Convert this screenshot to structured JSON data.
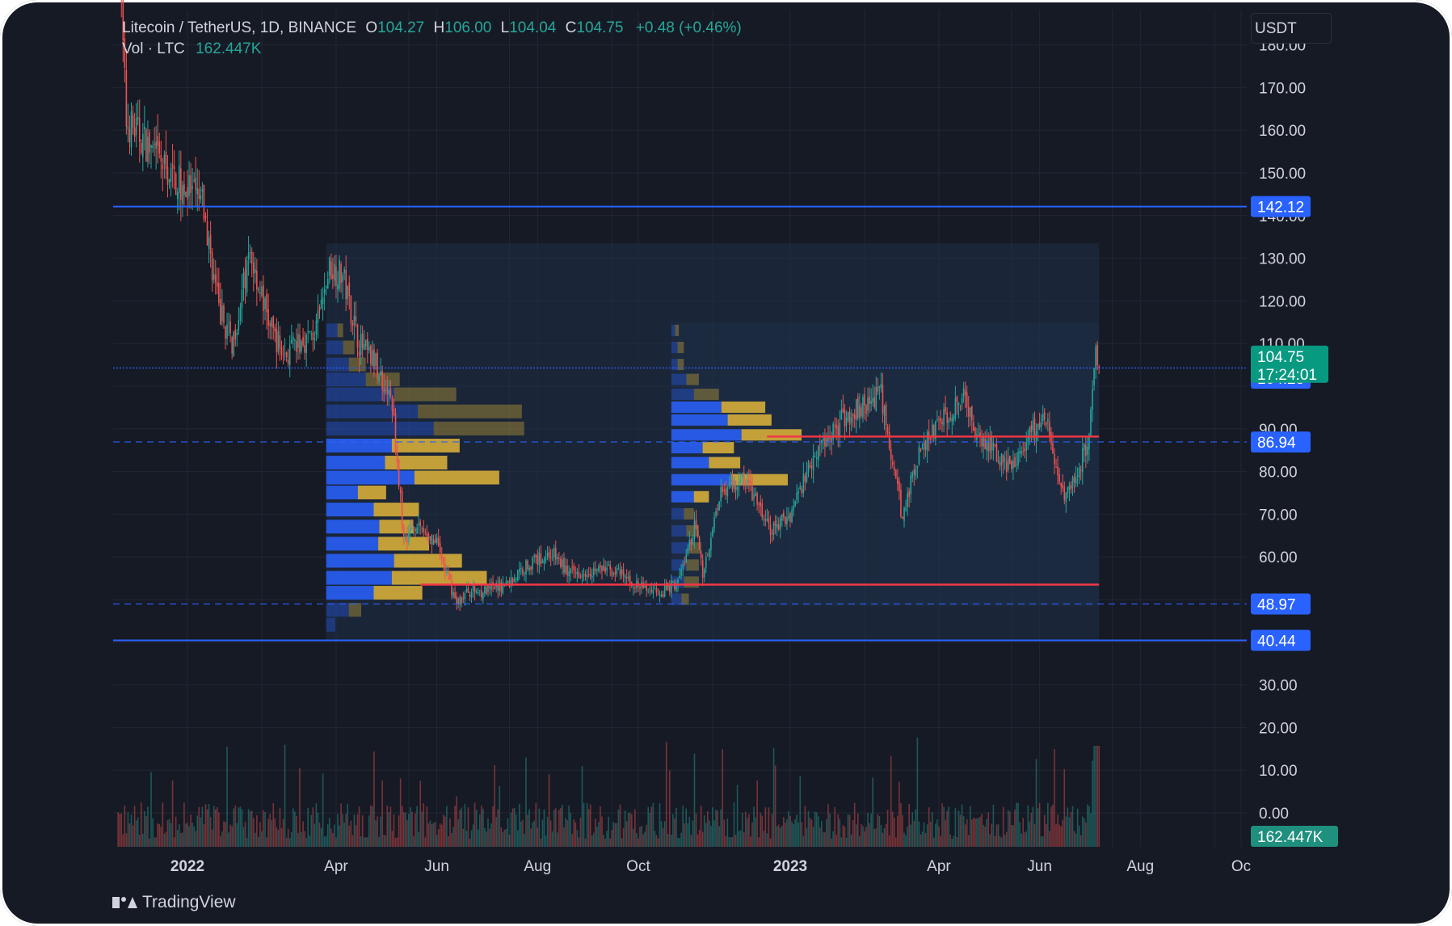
{
  "header": {
    "symbol": "Litecoin / TetherUS, 1D, BINANCE",
    "open_label": "O",
    "open": "104.27",
    "high_label": "H",
    "high": "106.00",
    "low_label": "L",
    "low": "104.04",
    "close_label": "C",
    "close": "104.75",
    "change": "+0.48 (+0.46%)",
    "volume_label": "Vol · LTC",
    "volume": "162.447K"
  },
  "currency_selector": "USDT",
  "brand": "TradingView",
  "colors": {
    "background": "#161a25",
    "grid": "#232733",
    "up": "#26a69a",
    "down": "#ef5350",
    "level_line": "#2962ff",
    "poc_line": "#f23645",
    "profile_up": "#2962ff",
    "profile_down": "#e0b53a",
    "axis_text": "#d1d4dc"
  },
  "chart_data": {
    "type": "candlestick",
    "title": "Litecoin / TetherUS, 1D, BINANCE",
    "y_axis": {
      "ylim": [
        -5,
        180
      ],
      "ticks": [
        "0.00",
        "10.00",
        "20.00",
        "30.00",
        "40.00",
        "50.00",
        "60.00",
        "70.00",
        "80.00",
        "90.00",
        "110.00",
        "120.00",
        "130.00",
        "140.00",
        "150.00",
        "160.00",
        "170.00",
        "180.00"
      ]
    },
    "x_axis": {
      "xlim": [
        "2021-11-15",
        "2023-10-15"
      ],
      "ticks": [
        {
          "label": "2022",
          "date": "2022-01-01",
          "bold": true
        },
        {
          "label": "Apr",
          "date": "2022-04-01"
        },
        {
          "label": "Jun",
          "date": "2022-06-01"
        },
        {
          "label": "Aug",
          "date": "2022-08-01"
        },
        {
          "label": "Oct",
          "date": "2022-10-01"
        },
        {
          "label": "2023",
          "date": "2023-01-01",
          "bold": true
        },
        {
          "label": "Apr",
          "date": "2023-04-01"
        },
        {
          "label": "Jun",
          "date": "2023-06-01"
        },
        {
          "label": "Aug",
          "date": "2023-08-01"
        },
        {
          "label": "Oc",
          "date": "2023-10-01"
        }
      ]
    },
    "grid": true,
    "price_path": [
      [
        "2021-11-20",
        205
      ],
      [
        "2021-11-25",
        162
      ],
      [
        "2021-12-05",
        158
      ],
      [
        "2021-12-20",
        150
      ],
      [
        "2022-01-01",
        146
      ],
      [
        "2022-01-10",
        143
      ],
      [
        "2022-01-20",
        118
      ],
      [
        "2022-01-28",
        110
      ],
      [
        "2022-02-08",
        131
      ],
      [
        "2022-02-20",
        114
      ],
      [
        "2022-03-01",
        107
      ],
      [
        "2022-03-10",
        110
      ],
      [
        "2022-03-20",
        113
      ],
      [
        "2022-03-28",
        128
      ],
      [
        "2022-04-05",
        126
      ],
      [
        "2022-04-15",
        110
      ],
      [
        "2022-04-25",
        105
      ],
      [
        "2022-05-05",
        96
      ],
      [
        "2022-05-12",
        64
      ],
      [
        "2022-05-20",
        68
      ],
      [
        "2022-06-01",
        63
      ],
      [
        "2022-06-13",
        49
      ],
      [
        "2022-06-20",
        52
      ],
      [
        "2022-07-01",
        52
      ],
      [
        "2022-07-15",
        54
      ],
      [
        "2022-07-25",
        58
      ],
      [
        "2022-08-10",
        61
      ],
      [
        "2022-08-20",
        56
      ],
      [
        "2022-09-01",
        57
      ],
      [
        "2022-09-15",
        57
      ],
      [
        "2022-10-01",
        53
      ],
      [
        "2022-10-15",
        52
      ],
      [
        "2022-10-25",
        54
      ],
      [
        "2022-11-05",
        68
      ],
      [
        "2022-11-09",
        56
      ],
      [
        "2022-11-20",
        76
      ],
      [
        "2022-12-05",
        78
      ],
      [
        "2022-12-20",
        66
      ],
      [
        "2023-01-01",
        70
      ],
      [
        "2023-01-15",
        84
      ],
      [
        "2023-02-01",
        92
      ],
      [
        "2023-02-15",
        96
      ],
      [
        "2023-02-25",
        98
      ],
      [
        "2023-03-10",
        69
      ],
      [
        "2023-03-20",
        85
      ],
      [
        "2023-04-01",
        91
      ],
      [
        "2023-04-15",
        98
      ],
      [
        "2023-04-25",
        88
      ],
      [
        "2023-05-05",
        85
      ],
      [
        "2023-05-15",
        80
      ],
      [
        "2023-05-25",
        89
      ],
      [
        "2023-06-05",
        92
      ],
      [
        "2023-06-15",
        74
      ],
      [
        "2023-06-25",
        81
      ],
      [
        "2023-07-01",
        88
      ],
      [
        "2023-07-05",
        109
      ],
      [
        "2023-07-07",
        104.75
      ]
    ],
    "horizontal_levels": [
      {
        "price": 142.12,
        "label": "142.12",
        "style": "solid"
      },
      {
        "price": 104.28,
        "label": "104.28",
        "style": "dotted"
      },
      {
        "price": 86.94,
        "label": "86.94",
        "style": "dashed"
      },
      {
        "price": 48.97,
        "label": "48.97",
        "style": "dashed"
      },
      {
        "price": 40.44,
        "label": "40.44",
        "style": "solid"
      }
    ],
    "last_price": {
      "price": 104.75,
      "label": "104.75",
      "countdown": "17:24:01"
    },
    "volume_badge": "162.447K",
    "volume_profiles": [
      {
        "start": "2022-03-26",
        "end": "2023-07-07",
        "price_range": [
          40.44,
          133.5
        ],
        "poc": 53.5,
        "rows": [
          [
            44,
            8,
            0
          ],
          [
            47.5,
            20,
            11
          ],
          [
            51.5,
            42,
            43
          ],
          [
            55,
            58,
            84
          ],
          [
            59,
            60,
            60
          ],
          [
            63,
            46,
            45
          ],
          [
            67,
            47,
            30
          ],
          [
            71,
            42,
            40
          ],
          [
            75,
            28,
            25
          ],
          [
            78.5,
            78,
            75
          ],
          [
            82,
            52,
            55
          ],
          [
            86,
            58,
            60
          ],
          [
            90,
            95,
            80
          ],
          [
            94,
            81,
            92
          ],
          [
            98,
            60,
            55
          ],
          [
            101.5,
            35,
            30
          ],
          [
            105,
            20,
            15
          ],
          [
            109,
            15,
            10
          ],
          [
            113,
            10,
            5
          ]
        ]
      },
      {
        "start": "2022-10-21",
        "end": "2023-07-07",
        "price_range": [
          48.5,
          115
        ],
        "poc": 88.2,
        "rows": [
          [
            50,
            8,
            6
          ],
          [
            54,
            10,
            12
          ],
          [
            58,
            12,
            10
          ],
          [
            62,
            14,
            10
          ],
          [
            66,
            12,
            10
          ],
          [
            70,
            10,
            8
          ],
          [
            74,
            18,
            12
          ],
          [
            78,
            48,
            45
          ],
          [
            82,
            30,
            25
          ],
          [
            85.5,
            25,
            25
          ],
          [
            88.5,
            56,
            48
          ],
          [
            92,
            45,
            35
          ],
          [
            95,
            40,
            35
          ],
          [
            98,
            18,
            20
          ],
          [
            101.5,
            12,
            10
          ],
          [
            105,
            5,
            5
          ],
          [
            109,
            5,
            5
          ],
          [
            113,
            3,
            3
          ]
        ]
      }
    ],
    "poc_lines": [
      {
        "price": 53.5,
        "from": "2022-05-22",
        "to": "2023-07-07"
      },
      {
        "price": 88.2,
        "from": "2022-12-18",
        "to": "2023-07-07"
      }
    ]
  }
}
